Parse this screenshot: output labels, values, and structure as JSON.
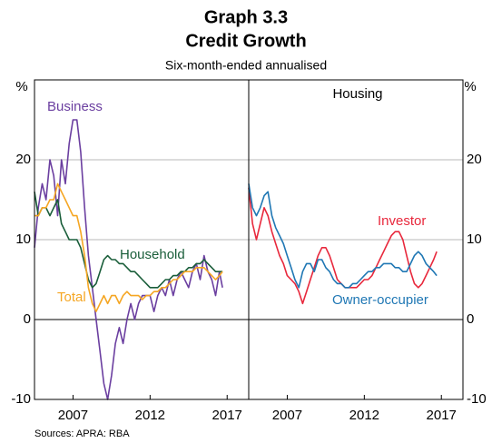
{
  "title": "Graph 3.3",
  "subtitle": "Credit Growth",
  "note": "Six-month-ended annualised",
  "source": "Sources:  APRA: RBA",
  "chart_data": [
    {
      "type": "line",
      "ylabel": "%",
      "xlim": [
        2004.5,
        2018.4
      ],
      "xticks": [
        2007,
        2012,
        2017
      ],
      "ylim": [
        -10,
        30
      ],
      "yticks": [
        -10,
        0,
        10,
        20
      ],
      "grid": true,
      "yaxis_side": "left",
      "x": [
        2004.5,
        2004.75,
        2005,
        2005.25,
        2005.5,
        2005.75,
        2006,
        2006.25,
        2006.5,
        2006.75,
        2007,
        2007.25,
        2007.5,
        2007.75,
        2008,
        2008.25,
        2008.5,
        2008.75,
        2009,
        2009.25,
        2009.5,
        2009.75,
        2010,
        2010.25,
        2010.5,
        2010.75,
        2011,
        2011.25,
        2011.5,
        2011.75,
        2012,
        2012.25,
        2012.5,
        2012.75,
        2013,
        2013.25,
        2013.5,
        2013.75,
        2014,
        2014.25,
        2014.5,
        2014.75,
        2015,
        2015.25,
        2015.5,
        2015.75,
        2016,
        2016.25,
        2016.5,
        2016.7
      ],
      "series": [
        {
          "name": "Business",
          "color": "#6b3fa0",
          "values": [
            9,
            14,
            17,
            15,
            20,
            18,
            13,
            20,
            17,
            22,
            25,
            25,
            21,
            14,
            8,
            4,
            0,
            -4,
            -8,
            -10,
            -7,
            -3,
            -1,
            -3,
            0,
            2,
            0,
            2,
            3,
            3,
            3,
            1,
            3,
            4,
            3,
            5,
            3,
            5,
            6,
            5,
            4,
            6,
            7,
            5,
            8,
            6,
            5,
            3,
            6,
            4
          ]
        },
        {
          "name": "Household",
          "color": "#1a5e3a",
          "values": [
            16,
            13,
            14,
            14,
            13,
            14,
            15,
            12,
            11,
            10,
            10,
            10,
            9,
            7,
            5,
            4,
            4.5,
            6,
            7.5,
            8,
            7.5,
            7.5,
            7,
            7,
            6.5,
            6,
            6,
            5.5,
            5,
            4.5,
            4,
            4,
            4,
            4.5,
            5,
            5,
            5.5,
            5.5,
            6,
            6,
            6.5,
            6.5,
            7,
            7,
            7.5,
            7,
            6.5,
            6,
            6,
            6
          ]
        },
        {
          "name": "Total",
          "color": "#f5a623",
          "values": [
            13,
            13,
            14,
            14,
            15,
            15,
            17,
            16,
            15,
            14,
            13,
            13,
            11,
            8,
            4,
            2,
            1,
            2,
            3,
            2,
            3,
            3,
            2,
            3,
            3.5,
            3,
            3,
            3,
            2.5,
            3,
            3,
            3.5,
            3.5,
            4,
            4,
            4.5,
            5,
            5,
            5.5,
            6,
            6,
            6,
            6.5,
            6.5,
            6.5,
            6,
            5.5,
            5,
            5.5,
            6
          ]
        }
      ]
    },
    {
      "type": "line",
      "title": "Housing",
      "ylabel": "%",
      "xlim": [
        2004.5,
        2018.4
      ],
      "xticks": [
        2007,
        2012,
        2017
      ],
      "ylim": [
        -10,
        30
      ],
      "yticks": [
        -10,
        0,
        10,
        20
      ],
      "grid": true,
      "yaxis_side": "right",
      "x": [
        2004.5,
        2004.75,
        2005,
        2005.25,
        2005.5,
        2005.75,
        2006,
        2006.25,
        2006.5,
        2006.75,
        2007,
        2007.25,
        2007.5,
        2007.75,
        2008,
        2008.25,
        2008.5,
        2008.75,
        2009,
        2009.25,
        2009.5,
        2009.75,
        2010,
        2010.25,
        2010.5,
        2010.75,
        2011,
        2011.25,
        2011.5,
        2011.75,
        2012,
        2012.25,
        2012.5,
        2012.75,
        2013,
        2013.25,
        2013.5,
        2013.75,
        2014,
        2014.25,
        2014.5,
        2014.75,
        2015,
        2015.25,
        2015.5,
        2015.75,
        2016,
        2016.25,
        2016.5,
        2016.7
      ],
      "series": [
        {
          "name": "Investor",
          "color": "#e8283c",
          "values": [
            16.5,
            12,
            10,
            12,
            14,
            13,
            11,
            9.5,
            8,
            7,
            5.5,
            5,
            4.5,
            3.5,
            2,
            3.5,
            5,
            6.5,
            8,
            9,
            9,
            8,
            6.5,
            5,
            4.5,
            4,
            4,
            4,
            4,
            4.5,
            5,
            5,
            5.5,
            6.5,
            7.5,
            8.5,
            9.5,
            10.5,
            11,
            11,
            10,
            8,
            6,
            4.5,
            4,
            4.5,
            5.5,
            6.5,
            7.5,
            8.5
          ]
        },
        {
          "name": "Owner-occupier",
          "color": "#1f77b4",
          "values": [
            17,
            14,
            13,
            14,
            15.5,
            16,
            13,
            11.5,
            10.5,
            9.5,
            8,
            6.5,
            5,
            4,
            6,
            7,
            7,
            6,
            7.5,
            7.5,
            6.5,
            6,
            5,
            4.5,
            4.5,
            4,
            4,
            4.5,
            4.5,
            5,
            5.5,
            6,
            6,
            6.5,
            6.5,
            7,
            7,
            7,
            6.5,
            6.5,
            6,
            6,
            7,
            8,
            8.5,
            8,
            7,
            6.5,
            6,
            5.5
          ]
        }
      ]
    }
  ]
}
